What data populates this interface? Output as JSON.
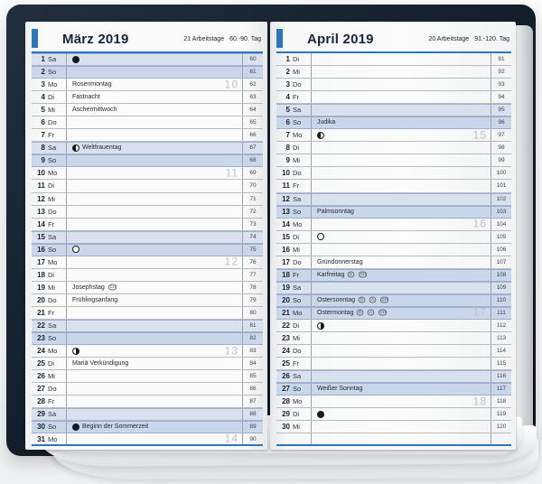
{
  "colors": {
    "accent_blue": "#2e76ba",
    "cover_navy": "#15202c",
    "shade_saturday": "#d9e1ef",
    "shade_sunday": "#cad6e9",
    "week_number_gray": "#bac2cd"
  },
  "pages": [
    {
      "title": "März 2019",
      "workdays": "21 Arbeitstage",
      "day_range": "60.-90. Tag",
      "rows": [
        {
          "d": "1",
          "wd": "Sa",
          "moon": "new",
          "doy": "60",
          "shade": "sa"
        },
        {
          "d": "2",
          "wd": "So",
          "doy": "61",
          "shade": "so"
        },
        {
          "d": "3",
          "wd": "Mo",
          "event": "Rosenmontag",
          "week": "10",
          "doy": "62"
        },
        {
          "d": "4",
          "wd": "Di",
          "event": "Fastnacht",
          "doy": "63"
        },
        {
          "d": "5",
          "wd": "Mi",
          "event": "Aschermittwoch",
          "doy": "64"
        },
        {
          "d": "6",
          "wd": "Do",
          "doy": "65"
        },
        {
          "d": "7",
          "wd": "Fr",
          "doy": "66"
        },
        {
          "d": "8",
          "wd": "Sa",
          "moon": "first",
          "event": "Weltfrauentag",
          "doy": "67",
          "shade": "sa"
        },
        {
          "d": "9",
          "wd": "So",
          "doy": "68",
          "shade": "so"
        },
        {
          "d": "10",
          "wd": "Mo",
          "week": "11",
          "doy": "69"
        },
        {
          "d": "11",
          "wd": "Di",
          "doy": "70"
        },
        {
          "d": "12",
          "wd": "Mi",
          "doy": "71"
        },
        {
          "d": "13",
          "wd": "Do",
          "doy": "72"
        },
        {
          "d": "14",
          "wd": "Fr",
          "doy": "73"
        },
        {
          "d": "15",
          "wd": "Sa",
          "doy": "74",
          "shade": "sa"
        },
        {
          "d": "16",
          "wd": "So",
          "moon": "full",
          "doy": "75",
          "shade": "so"
        },
        {
          "d": "17",
          "wd": "Mo",
          "week": "12",
          "doy": "76"
        },
        {
          "d": "18",
          "wd": "Di",
          "doy": "77"
        },
        {
          "d": "19",
          "wd": "Mi",
          "event": "Josephstag",
          "badges": [
            "CH"
          ],
          "doy": "78"
        },
        {
          "d": "20",
          "wd": "Do",
          "event": "Frühlingsanfang",
          "doy": "79"
        },
        {
          "d": "21",
          "wd": "Fr",
          "doy": "80"
        },
        {
          "d": "22",
          "wd": "Sa",
          "doy": "81",
          "shade": "sa"
        },
        {
          "d": "23",
          "wd": "So",
          "doy": "82",
          "shade": "so"
        },
        {
          "d": "24",
          "wd": "Mo",
          "moon": "last",
          "week": "13",
          "doy": "83"
        },
        {
          "d": "25",
          "wd": "Di",
          "event": "Mariä Verkündigung",
          "doy": "84"
        },
        {
          "d": "26",
          "wd": "Mi",
          "doy": "85"
        },
        {
          "d": "27",
          "wd": "Do",
          "doy": "86"
        },
        {
          "d": "28",
          "wd": "Fr",
          "doy": "87"
        },
        {
          "d": "29",
          "wd": "Sa",
          "doy": "88",
          "shade": "sa"
        },
        {
          "d": "30",
          "wd": "So",
          "moon": "new",
          "event": "Beginn der Sommerzeit",
          "doy": "89",
          "shade": "so"
        },
        {
          "d": "31",
          "wd": "Mo",
          "week": "14",
          "doy": "90",
          "last": true
        }
      ]
    },
    {
      "title": "April 2019",
      "workdays": "20 Arbeitstage",
      "day_range": "91.-120. Tag",
      "rows": [
        {
          "d": "1",
          "wd": "Di",
          "doy": "91"
        },
        {
          "d": "2",
          "wd": "Mi",
          "doy": "92"
        },
        {
          "d": "3",
          "wd": "Do",
          "doy": "93"
        },
        {
          "d": "4",
          "wd": "Fr",
          "doy": "94"
        },
        {
          "d": "5",
          "wd": "Sa",
          "doy": "95",
          "shade": "sa"
        },
        {
          "d": "6",
          "wd": "So",
          "event": "Judika",
          "doy": "96",
          "shade": "so"
        },
        {
          "d": "7",
          "wd": "Mo",
          "moon": "first",
          "week": "15",
          "doy": "97"
        },
        {
          "d": "8",
          "wd": "Di",
          "doy": "98"
        },
        {
          "d": "9",
          "wd": "Mi",
          "doy": "99"
        },
        {
          "d": "10",
          "wd": "Do",
          "doy": "100"
        },
        {
          "d": "11",
          "wd": "Fr",
          "doy": "101"
        },
        {
          "d": "12",
          "wd": "Sa",
          "doy": "102",
          "shade": "sa"
        },
        {
          "d": "13",
          "wd": "So",
          "event": "Palmsonntag",
          "doy": "103",
          "shade": "so"
        },
        {
          "d": "14",
          "wd": "Mo",
          "week": "16",
          "doy": "104"
        },
        {
          "d": "15",
          "wd": "Di",
          "moon": "full",
          "doy": "105"
        },
        {
          "d": "16",
          "wd": "Mi",
          "doy": "106"
        },
        {
          "d": "17",
          "wd": "Do",
          "event": "Gründonnerstag",
          "doy": "107"
        },
        {
          "d": "18",
          "wd": "Fr",
          "event": "Karfreitag",
          "badges": [
            "D",
            "CH"
          ],
          "doy": "108",
          "shade": "hol"
        },
        {
          "d": "19",
          "wd": "Sa",
          "doy": "109",
          "shade": "sa"
        },
        {
          "d": "20",
          "wd": "So",
          "event": "Ostersonntag",
          "badges": [
            "D",
            "A",
            "CH"
          ],
          "doy": "110",
          "shade": "so"
        },
        {
          "d": "21",
          "wd": "Mo",
          "event": "Ostermontag",
          "badges": [
            "D",
            "A",
            "CH"
          ],
          "week": "17",
          "doy": "111",
          "shade": "hol"
        },
        {
          "d": "22",
          "wd": "Di",
          "moon": "last",
          "doy": "112"
        },
        {
          "d": "23",
          "wd": "Mi",
          "doy": "113"
        },
        {
          "d": "24",
          "wd": "Do",
          "doy": "114"
        },
        {
          "d": "25",
          "wd": "Fr",
          "doy": "115"
        },
        {
          "d": "26",
          "wd": "Sa",
          "doy": "116",
          "shade": "sa"
        },
        {
          "d": "27",
          "wd": "So",
          "event": "Weißer Sonntag",
          "doy": "117",
          "shade": "so"
        },
        {
          "d": "28",
          "wd": "Mo",
          "week": "18",
          "doy": "118"
        },
        {
          "d": "29",
          "wd": "Di",
          "moon": "new",
          "doy": "119"
        },
        {
          "d": "30",
          "wd": "Mi",
          "doy": "120"
        },
        {
          "d": "",
          "wd": "",
          "doy": "",
          "last": true
        }
      ]
    }
  ]
}
